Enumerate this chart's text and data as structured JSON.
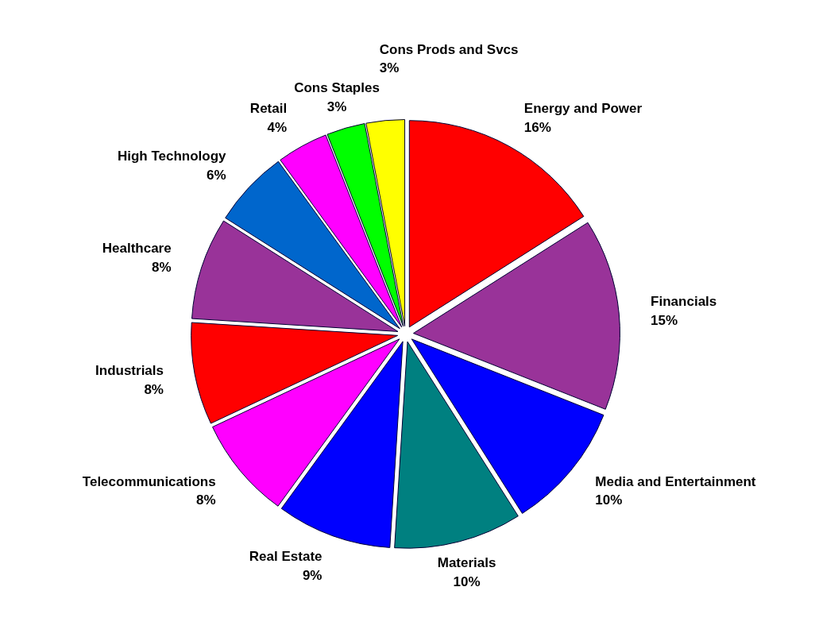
{
  "chart_data": {
    "type": "pie",
    "categories": [
      "Energy and Power",
      "Financials",
      "Media and Entertainment",
      "Materials",
      "Real Estate",
      "Telecommunications",
      "Industrials",
      "Healthcare",
      "High Technology",
      "Retail",
      "Cons Staples",
      "Cons Prods and Svcs"
    ],
    "values": [
      16,
      15,
      10,
      10,
      9,
      8,
      8,
      8,
      6,
      4,
      3,
      3
    ],
    "value_labels": [
      "16%",
      "15%",
      "10%",
      "10%",
      "9%",
      "8%",
      "8%",
      "8%",
      "6%",
      "4%",
      "3%",
      "3%"
    ],
    "colors": [
      "#ff0000",
      "#993399",
      "#0000ff",
      "#008080",
      "#0000ff",
      "#ff00ff",
      "#ff0000",
      "#993399",
      "#0066cc",
      "#ff00ff",
      "#00ff00",
      "#ffff00"
    ]
  }
}
